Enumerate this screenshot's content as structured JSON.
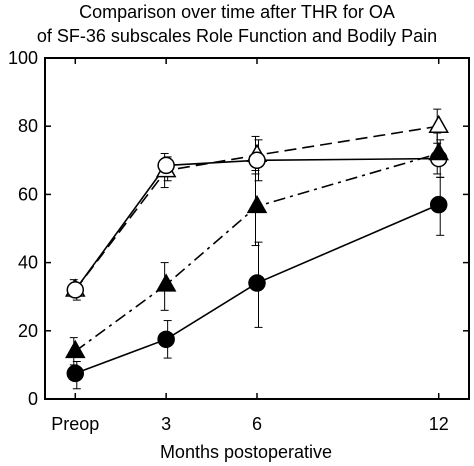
{
  "chart_data": {
    "type": "line",
    "title_lines": [
      "Comparison over time after THR for OA",
      "of SF-36 subscales Role Function and Bodily Pain"
    ],
    "xlabel": "Months postoperative",
    "ylabel": "",
    "x_ticks": [
      {
        "value": 0,
        "label": "Preop"
      },
      {
        "value": 3,
        "label": "3"
      },
      {
        "value": 6,
        "label": "6"
      },
      {
        "value": 12,
        "label": "12"
      }
    ],
    "x_positions": [
      0,
      3,
      6,
      12
    ],
    "xlim": [
      -1,
      13
    ],
    "ylim": [
      0,
      100
    ],
    "y_ticks": [
      0,
      20,
      40,
      60,
      80,
      100
    ],
    "grid": false,
    "series": [
      {
        "marker": "open-triangle",
        "line": "dashed",
        "values": [
          32,
          67,
          71.5,
          80
        ],
        "error": [
          [
            30,
            35
          ],
          [
            62,
            72
          ],
          [
            66,
            77
          ],
          [
            75,
            85
          ]
        ]
      },
      {
        "marker": "open-circle",
        "line": "solid",
        "values": [
          32,
          68.5,
          70,
          70.5
        ],
        "error": [
          [
            29,
            34
          ],
          [
            64,
            71
          ],
          [
            64,
            76
          ],
          [
            65,
            76
          ]
        ]
      },
      {
        "marker": "filled-triangle",
        "line": "dash-dot",
        "values": [
          14,
          33.5,
          56.5,
          72
        ],
        "error": [
          [
            10,
            18
          ],
          [
            26,
            40
          ],
          [
            45,
            67
          ],
          [
            66,
            78
          ]
        ]
      },
      {
        "marker": "filled-circle",
        "line": "solid",
        "values": [
          7.5,
          17.5,
          34,
          57
        ],
        "error": [
          [
            3,
            11
          ],
          [
            12,
            23
          ],
          [
            21,
            46
          ],
          [
            48,
            65
          ]
        ]
      }
    ]
  }
}
